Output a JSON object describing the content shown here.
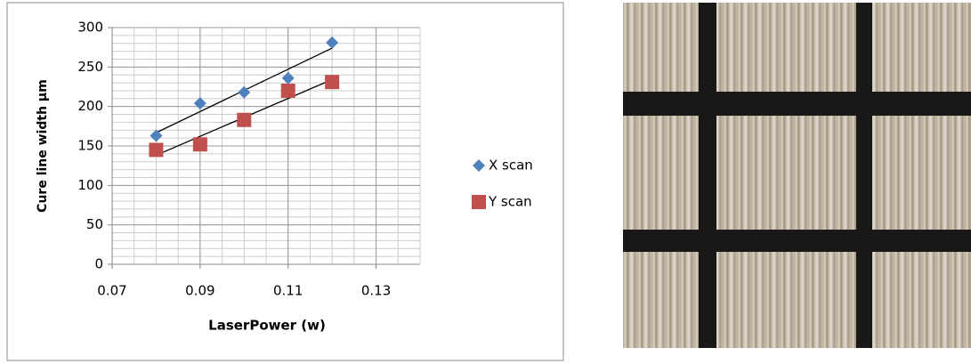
{
  "chart_data": {
    "type": "scatter",
    "x": [
      0.08,
      0.09,
      0.1,
      0.11,
      0.12
    ],
    "series": [
      {
        "name": "X scan",
        "color": "#4f81bd",
        "marker": "diamond",
        "values": [
          163,
          204,
          218,
          236,
          281
        ]
      },
      {
        "name": "Y scan",
        "color": "#c0504d",
        "marker": "square",
        "values": [
          145,
          152,
          183,
          220,
          231
        ]
      }
    ],
    "x_label": "LaserPower (w)",
    "y_label": "Cure line width µm",
    "xlim": [
      0.07,
      0.14
    ],
    "xticks": [
      0.07,
      0.09,
      0.11,
      0.13
    ],
    "ylim": [
      0,
      300
    ],
    "yticks": [
      0,
      50,
      100,
      150,
      200,
      250,
      300
    ],
    "grid": true,
    "minor_grid": true,
    "trendline": "linear",
    "legend": "right"
  }
}
